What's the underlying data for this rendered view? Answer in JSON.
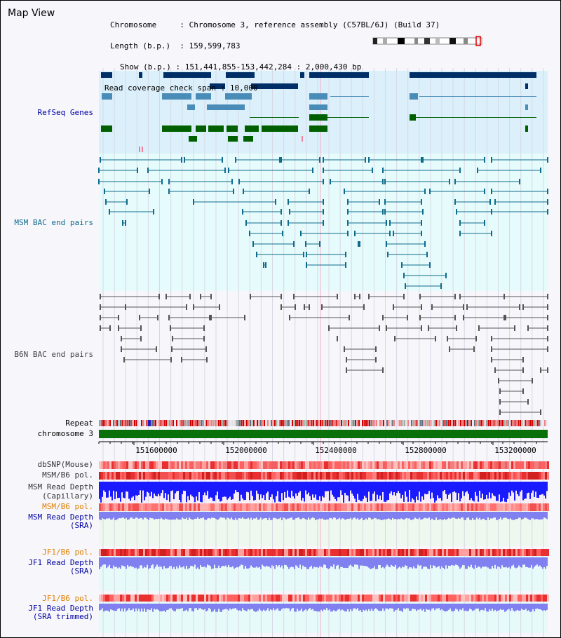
{
  "title": "Map View",
  "info": {
    "chromosome_key": "Chromosome",
    "chromosome_val": "Chromosome 3, reference assembly (C57BL/6J) (Build 37)",
    "length_key": "Length (b.p.)",
    "length_val": "159,599,783",
    "show_key": "Show (b.p.)",
    "show_val": "151,441,855-153,442,284 : 2,000,430 bp",
    "span_key": "Read coverage check span",
    "span_val": "10,000"
  },
  "track_labels": {
    "refseq": "RefSeq Genes",
    "msm_bac": "MSM BAC end pairs",
    "b6n_bac": "B6N BAC end pairs",
    "repeat": "Repeat",
    "chromosome": "chromosome 3",
    "dbsnp": "dbSNP(Mouse)",
    "msm_b6_pol_1": "MSM/B6 pol.",
    "msm_read_depth_cap_1": "MSM Read Depth",
    "msm_read_depth_cap_2": "(Capillary)",
    "msm_b6_pol_2": "MSM/B6 pol.",
    "msm_read_depth_sra_1": "MSM Read Depth",
    "msm_read_depth_sra_2": "(SRA)",
    "jf1_b6_pol_1": "JF1/B6 pol.",
    "jf1_read_depth_sra_1": "JF1 Read Depth",
    "jf1_read_depth_sra_2": "(SRA)",
    "jf1_b6_pol_2": "JF1/B6 pol.",
    "jf1_read_depth_trim_1": "JF1 Read Depth",
    "jf1_read_depth_trim_2": "(SRA trimmed)"
  },
  "axis_ticks": [
    "151600000",
    "152000000",
    "152400000",
    "152800000",
    "153200000"
  ],
  "colors": {
    "refseq_bg": "#dbf0fb",
    "bac_msm_bg": "#e6fbfb",
    "gene_navy": "#002e66",
    "gene_steel": "#4a8cb8",
    "gene_green": "#006000",
    "msm_line": "#0f6b8e",
    "b6n_line": "#555555",
    "label_blue": "#0000a0",
    "label_teal": "#0f6b8e",
    "label_gray": "#444444",
    "label_orange": "#e08000",
    "depth_blue": "#1a1aff",
    "depth_light": "#8080f0",
    "pol_red": "#e83030"
  }
}
